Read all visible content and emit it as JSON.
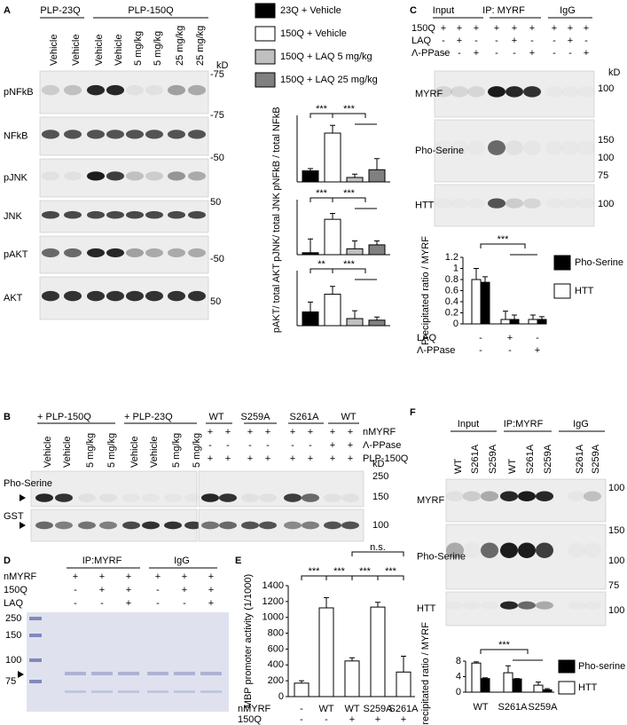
{
  "panels": {
    "a": "A",
    "b": "B",
    "c": "C",
    "d": "D",
    "e": "E",
    "f": "F"
  },
  "panel_a": {
    "groups": [
      "PLP-23Q",
      "PLP-150Q"
    ],
    "lanes": [
      "Vehicle",
      "Vehicle",
      "Vehicle",
      "Vehicle",
      "5 mg/kg",
      "5 mg/kg",
      "25 mg/kg",
      "25 mg/kg"
    ],
    "kd_label": "kD",
    "blots": [
      "pNFkB",
      "NFkB",
      "pJNK",
      "JNK",
      "pAKT",
      "AKT"
    ],
    "markers": [
      "-75",
      "-75",
      "-50",
      "50",
      "-50",
      "50"
    ],
    "legend": [
      {
        "name": "23Q + Vehicle",
        "color": "#000000"
      },
      {
        "name": "150Q + Vehicle",
        "color": "#ffffff"
      },
      {
        "name": "150Q + LAQ 5 mg/kg",
        "color": "#c0c0c0"
      },
      {
        "name": "150Q + LAQ 25 mg/kg",
        "color": "#808080"
      }
    ],
    "charts": [
      {
        "type": "bar",
        "ylabel": "pNFkB / total NFkB",
        "ylim": [
          0,
          3
        ],
        "values": [
          0.5,
          2.2,
          0.2,
          0.55
        ],
        "errors": [
          0.1,
          0.35,
          0.15,
          0.5
        ],
        "significance": [
          "***",
          "***"
        ]
      },
      {
        "type": "bar",
        "ylabel": "pJNK/ total JNK",
        "ylim": [
          0,
          1.4
        ],
        "values": [
          0.05,
          0.9,
          0.15,
          0.25
        ],
        "errors": [
          0.35,
          0.15,
          0.2,
          0.1
        ],
        "significance": [
          "***",
          "***"
        ]
      },
      {
        "type": "bar",
        "ylabel": "pAKT/ total AKT",
        "ylim": [
          0,
          1.4
        ],
        "values": [
          0.35,
          0.8,
          0.18,
          0.14
        ],
        "errors": [
          0.25,
          0.2,
          0.2,
          0.08
        ],
        "significance": [
          "**",
          "***"
        ]
      }
    ]
  },
  "panel_b": {
    "groups_left": [
      "+ PLP-150Q",
      "+ PLP-23Q"
    ],
    "groups_right": [
      "WT",
      "S259A",
      "S261A",
      "WT"
    ],
    "lanes": [
      "Vehicle",
      "Vehicle",
      "5 mg/kg",
      "5 mg/kg",
      "Vehicle",
      "Vehicle",
      "5 mg/kg",
      "5 mg/kg"
    ],
    "rows": [
      {
        "label": "nMYRF",
        "signs": [
          "+",
          "+",
          "+",
          "+",
          "+",
          "+",
          "+",
          "+"
        ]
      },
      {
        "label": "Λ-PPase",
        "signs": [
          "-",
          "-",
          "-",
          "-",
          "-",
          "-",
          "+",
          "+"
        ]
      },
      {
        "label": "PLP-150Q",
        "signs": [
          "+",
          "+",
          "+",
          "+",
          "+",
          "+",
          "+",
          "+"
        ]
      }
    ],
    "kd_label": "kD",
    "blots": [
      {
        "name": "Pho-Serine",
        "markers": [
          "250",
          "150"
        ]
      },
      {
        "name": "GST",
        "markers": [
          "100"
        ]
      }
    ]
  },
  "panel_c": {
    "headers": [
      "Input",
      "IP: MYRF",
      "IgG"
    ],
    "rows": [
      {
        "label": "150Q",
        "signs": [
          "+",
          "+",
          "+",
          "+",
          "+",
          "+",
          "+",
          "+",
          "+"
        ]
      },
      {
        "label": "LAQ",
        "signs": [
          "-",
          "+",
          "-",
          "-",
          "+",
          "-",
          "-",
          "+",
          "-"
        ]
      },
      {
        "label": "Λ-PPase",
        "signs": [
          "-",
          "-",
          "+",
          "-",
          "-",
          "+",
          "-",
          "-",
          "+"
        ]
      }
    ],
    "kd_label": "kD",
    "blots": [
      {
        "name": "MYRF",
        "markers": [
          "100"
        ]
      },
      {
        "name": "Pho-Serine",
        "markers": [
          "150",
          "100",
          "75"
        ]
      },
      {
        "name": "HTT",
        "markers": [
          "100"
        ]
      }
    ],
    "chart": {
      "type": "bar",
      "ylabel": "Precipitated ratio / MYRF",
      "ylim": [
        0,
        1.2
      ],
      "yticks": [
        0,
        0.2,
        0.4,
        0.6,
        0.8,
        1,
        1.2
      ],
      "series": [
        {
          "name": "Pho-Serine",
          "color": "#000000",
          "values": [
            0.75,
            0.08,
            0.08
          ],
          "errors": [
            0.1,
            0.08,
            0.05
          ]
        },
        {
          "name": "HTT",
          "color": "#ffffff",
          "values": [
            0.8,
            0.08,
            0.08
          ],
          "errors": [
            0.2,
            0.15,
            0.08
          ]
        }
      ],
      "significance": "***",
      "rows": [
        {
          "label": "LAQ",
          "signs": [
            "-",
            "+",
            "-"
          ]
        },
        {
          "label": "Λ-PPase",
          "signs": [
            "-",
            "-",
            "+"
          ]
        }
      ]
    }
  },
  "panel_d": {
    "headers": [
      "IP:MYRF",
      "IgG"
    ],
    "rows": [
      {
        "label": "nMYRF",
        "signs": [
          "+",
          "+",
          "+",
          "+",
          "+",
          "+"
        ]
      },
      {
        "label": "150Q",
        "signs": [
          "-",
          "+",
          "+",
          "-",
          "+",
          "+"
        ]
      },
      {
        "label": "LAQ",
        "signs": [
          "-",
          "-",
          "+",
          "-",
          "-",
          "+"
        ]
      }
    ],
    "ladder": [
      "250",
      "150",
      "100",
      "75"
    ]
  },
  "panel_e": {
    "chart": {
      "type": "bar",
      "ylabel": "MBP promoter activity (1/1000)",
      "ylim": [
        0,
        1400
      ],
      "yticks": [
        0,
        200,
        400,
        600,
        800,
        1000,
        1200,
        1400
      ],
      "values": [
        170,
        1120,
        450,
        1130,
        310
      ],
      "errors": [
        30,
        130,
        40,
        60,
        200
      ],
      "significance": [
        "***",
        "***",
        "***",
        "***",
        "n.s."
      ],
      "rows": [
        {
          "label": "nMYRF",
          "cells": [
            "-",
            "WT",
            "WT",
            "S259A",
            "S261A"
          ]
        },
        {
          "label": "150Q",
          "cells": [
            "-",
            "-",
            "+",
            "+",
            "+"
          ]
        }
      ]
    }
  },
  "panel_f": {
    "headers": [
      "Input",
      "IP:MYRF",
      "IgG"
    ],
    "lanes": [
      "WT",
      "S261A",
      "S259A",
      "WT",
      "S261A",
      "S259A",
      "S261A",
      "S259A"
    ],
    "blots": [
      {
        "name": "MYRF",
        "markers": [
          "100"
        ]
      },
      {
        "name": "Pho-Serine",
        "markers": [
          "150",
          "100",
          "75"
        ]
      },
      {
        "name": "HTT",
        "markers": [
          "100"
        ]
      }
    ],
    "chart": {
      "type": "bar",
      "ylabel": "Precipitated ratio / MYRF",
      "ylim": [
        0,
        8
      ],
      "yticks": [
        0,
        4,
        8
      ],
      "categories": [
        "WT",
        "S261A",
        "S259A"
      ],
      "series": [
        {
          "name": "Pho-serine",
          "color": "#000000",
          "values": [
            3.5,
            3.4,
            0.6
          ],
          "errors": [
            0.2,
            0.1,
            0.3
          ]
        },
        {
          "name": "HTT",
          "color": "#ffffff",
          "values": [
            7.5,
            5,
            1.8
          ],
          "errors": [
            0.3,
            1.8,
            0.8
          ]
        }
      ],
      "significance": "***"
    }
  }
}
